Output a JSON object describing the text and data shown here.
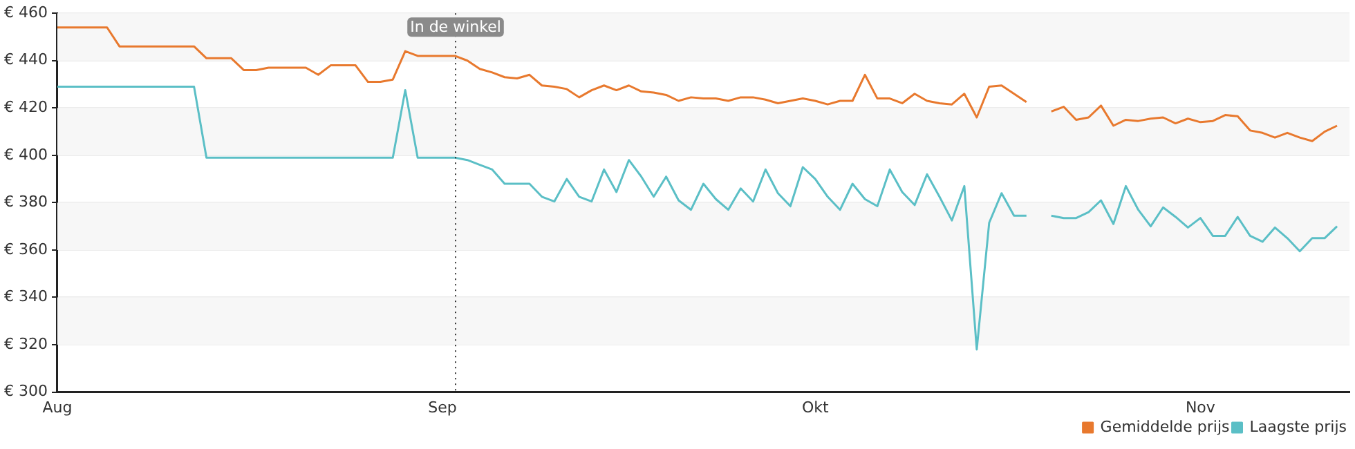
{
  "chart_data": {
    "type": "line",
    "x": [
      "--08-01",
      "--08-02",
      "--08-03",
      "--08-04",
      "--08-05",
      "--08-06",
      "--08-07",
      "--08-08",
      "--08-09",
      "--08-10",
      "--08-11",
      "--08-12",
      "--08-13",
      "--08-14",
      "--08-15",
      "--08-16",
      "--08-17",
      "--08-18",
      "--08-19",
      "--08-20",
      "--08-21",
      "--08-22",
      "--08-23",
      "--08-24",
      "--08-25",
      "--08-26",
      "--08-27",
      "--08-28",
      "--08-29",
      "--08-30",
      "--08-31",
      "--09-01",
      "--09-02",
      "--09-03",
      "--09-04",
      "--09-05",
      "--09-06",
      "--09-07",
      "--09-08",
      "--09-09",
      "--09-10",
      "--09-11",
      "--09-12",
      "--09-13",
      "--09-14",
      "--09-15",
      "--09-16",
      "--09-17",
      "--09-18",
      "--09-19",
      "--09-20",
      "--09-21",
      "--09-22",
      "--09-23",
      "--09-24",
      "--09-25",
      "--09-26",
      "--09-27",
      "--09-28",
      "--09-29",
      "--09-30",
      "--10-01",
      "--10-02",
      "--10-03",
      "--10-04",
      "--10-05",
      "--10-06",
      "--10-07",
      "--10-08",
      "--10-09",
      "--10-10",
      "--10-11",
      "--10-12",
      "--10-13",
      "--10-14",
      "--10-15",
      "--10-16",
      "--10-17",
      "--10-18",
      "--10-19",
      "--10-20",
      "--10-21",
      "--10-22",
      "--10-23",
      "--10-24",
      "--10-25",
      "--10-26",
      "--10-27",
      "--10-28",
      "--10-29",
      "--10-30",
      "--10-31",
      "--11-01",
      "--11-02",
      "--11-03",
      "--11-04",
      "--11-05",
      "--11-06",
      "--11-07",
      "--11-08",
      "--11-09",
      "--11-10",
      "--11-11",
      "--11-12"
    ],
    "series": [
      {
        "name": "Gemiddelde prijs",
        "color": "#e8792e",
        "values": [
          454,
          454,
          454,
          454,
          454,
          446,
          446,
          446,
          446,
          446,
          446,
          446,
          441,
          441,
          441,
          436,
          436,
          437,
          437,
          437,
          437,
          434,
          438,
          438,
          438,
          431,
          431,
          432,
          444,
          442,
          442,
          442,
          442,
          440,
          436.5,
          435,
          433,
          432.5,
          434,
          429.5,
          429,
          428,
          424.5,
          427.5,
          429.5,
          427.5,
          429.5,
          427,
          426.5,
          425.5,
          423,
          424.5,
          424,
          424,
          423,
          424.5,
          424.5,
          423.5,
          422,
          423,
          424,
          423,
          421.5,
          423,
          423,
          434,
          424,
          424,
          422,
          426,
          423,
          422,
          421.5,
          426,
          416,
          429,
          429.5,
          426,
          422.5,
          null,
          418.5,
          420.5,
          415,
          416,
          421,
          412.5,
          415,
          414.5,
          415.5,
          416,
          413.5,
          415.5,
          414,
          414.5,
          417,
          416.5,
          410.5,
          409.5,
          407.5,
          409.5,
          407.5,
          406,
          410,
          412.5
        ]
      },
      {
        "name": "Laagste prijs",
        "color": "#5bbfc6",
        "values": [
          429,
          429,
          429,
          429,
          429,
          429,
          429,
          429,
          429,
          429,
          429,
          429,
          399,
          399,
          399,
          399,
          399,
          399,
          399,
          399,
          399,
          399,
          399,
          399,
          399,
          399,
          399,
          399,
          427.5,
          399,
          399,
          399,
          399,
          398,
          396,
          394,
          388,
          388,
          388,
          382.5,
          380.5,
          390,
          382.5,
          380.5,
          394,
          384.5,
          398,
          391,
          382.5,
          391,
          381,
          377,
          388,
          381.5,
          377,
          386,
          380.5,
          394,
          384,
          378.5,
          395,
          390,
          382.5,
          377,
          388,
          381.5,
          378.5,
          394,
          384.5,
          379,
          392,
          382.5,
          372.5,
          387,
          318,
          371.5,
          384,
          374.5,
          374.5,
          null,
          374.5,
          373.5,
          373.5,
          376,
          381,
          371,
          387,
          377,
          370,
          378,
          374,
          369.5,
          373.5,
          366,
          366,
          374,
          366,
          363.5,
          369.5,
          365,
          359.5,
          365,
          365,
          370
        ]
      }
    ],
    "xlim": [
      "--08-01",
      "--11-13"
    ],
    "xticks": [
      {
        "value": "--08-01",
        "label": "Aug"
      },
      {
        "value": "--09-01",
        "label": "Sep"
      },
      {
        "value": "--10-01",
        "label": "Okt"
      },
      {
        "value": "--11-01",
        "label": "Nov"
      }
    ],
    "ylim": [
      300,
      460
    ],
    "yticks": [
      {
        "value": 300,
        "label": "€ 300"
      },
      {
        "value": 320,
        "label": "€ 320"
      },
      {
        "value": 340,
        "label": "€ 340"
      },
      {
        "value": 360,
        "label": "€ 360"
      },
      {
        "value": 380,
        "label": "€ 380"
      },
      {
        "value": 400,
        "label": "€ 400"
      },
      {
        "value": 420,
        "label": "€ 420"
      },
      {
        "value": 440,
        "label": "€ 440"
      },
      {
        "value": 460,
        "label": "€ 460"
      }
    ],
    "ref_lines": [
      {
        "axis": "x",
        "value": "--09-02",
        "label": "In de winkel",
        "line_style": "dotted",
        "color": "#333333"
      }
    ],
    "grid": "y",
    "legend": "bottom right",
    "marker": "none",
    "line_style": "solid"
  }
}
